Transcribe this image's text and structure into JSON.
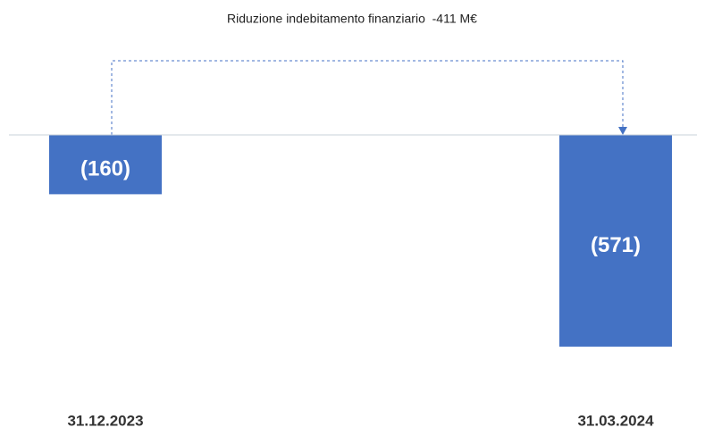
{
  "chart_data": {
    "type": "bar",
    "annotation": "Riduzione indebitamento finanziario  -411 M€",
    "categories": [
      "31.12.2023",
      "31.03.2024"
    ],
    "values": [
      -160,
      -571
    ],
    "value_labels": [
      "(160)",
      "(571)"
    ],
    "color": "#4472c4",
    "ylim": [
      -600,
      0
    ]
  }
}
